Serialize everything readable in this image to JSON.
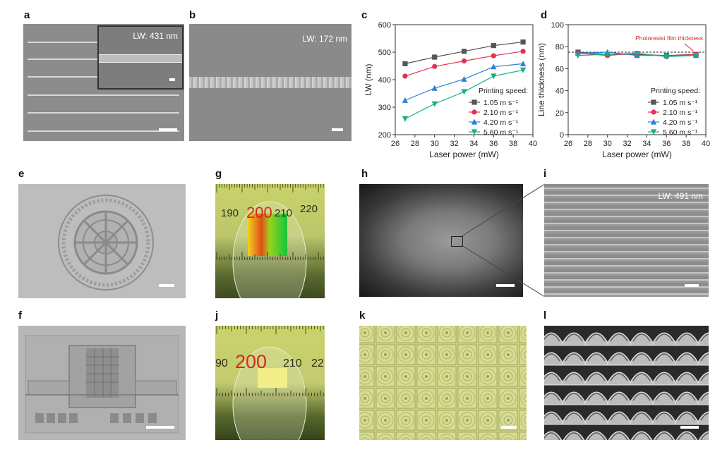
{
  "labels": {
    "a": "a",
    "b": "b",
    "c": "c",
    "d": "d",
    "e": "e",
    "f": "f",
    "g": "g",
    "h": "h",
    "i": "i",
    "j": "j",
    "k": "k",
    "l": "l"
  },
  "panel_a": {
    "inset_lw": "LW: 431 nm"
  },
  "panel_b": {
    "lw": "LW: 172 nm"
  },
  "panel_i": {
    "lw": "LW: 491 nm"
  },
  "ruler_g": {
    "ticks": [
      "190",
      "200",
      "210",
      "220"
    ]
  },
  "ruler_j": {
    "ticks": [
      "90",
      "200",
      "210",
      "22"
    ]
  },
  "colors": {
    "s1": "#555555",
    "s2": "#e0334f",
    "s3": "#2f7fd6",
    "s4": "#16b088",
    "highlight": "#d42a1e"
  },
  "chart_data": [
    {
      "type": "line",
      "xlabel": "Laser power (mW)",
      "ylabel": "LW (nm)",
      "xlim": [
        26,
        40
      ],
      "ylim": [
        200,
        600
      ],
      "xticks": [
        26,
        28,
        30,
        32,
        34,
        36,
        38,
        40
      ],
      "yticks": [
        200,
        300,
        400,
        500,
        600
      ],
      "legend_title": "Printing speed:",
      "legend_position": "bottom-right",
      "x": [
        27,
        30,
        33,
        36,
        39
      ],
      "series": [
        {
          "name": "1.05 m s⁻¹",
          "marker": "square",
          "values": [
            458,
            482,
            503,
            524,
            537
          ]
        },
        {
          "name": "2.10 m s⁻¹",
          "marker": "circle",
          "values": [
            413,
            448,
            468,
            487,
            503
          ]
        },
        {
          "name": "4.20 m s⁻¹",
          "marker": "triangle-up",
          "values": [
            325,
            369,
            402,
            447,
            458
          ]
        },
        {
          "name": "5.60 m s⁻¹",
          "marker": "triangle-down",
          "values": [
            258,
            312,
            356,
            413,
            435
          ]
        }
      ]
    },
    {
      "type": "line",
      "xlabel": "Laser power (mW)",
      "ylabel": "Line thickness (nm)",
      "xlim": [
        26,
        40
      ],
      "ylim": [
        0,
        100
      ],
      "xticks": [
        26,
        28,
        30,
        32,
        34,
        36,
        38,
        40
      ],
      "yticks": [
        0,
        20,
        40,
        60,
        80,
        100
      ],
      "legend_title": "Printing speed:",
      "legend_position": "bottom-right",
      "reference_line": {
        "value": 75,
        "label": "Photoresist film thickness"
      },
      "x": [
        27,
        30,
        33,
        36,
        39
      ],
      "series": [
        {
          "name": "1.05 m s⁻¹",
          "marker": "square",
          "values": [
            75,
            73,
            73,
            72,
            73
          ]
        },
        {
          "name": "2.10 m s⁻¹",
          "marker": "circle",
          "values": [
            74,
            72,
            74,
            71,
            73
          ]
        },
        {
          "name": "4.20 m s⁻¹",
          "marker": "triangle-up",
          "values": [
            74,
            75,
            72,
            72,
            72
          ]
        },
        {
          "name": "5.60 m s⁻¹",
          "marker": "triangle-down",
          "values": [
            72,
            73,
            74,
            71,
            72
          ]
        }
      ]
    }
  ]
}
